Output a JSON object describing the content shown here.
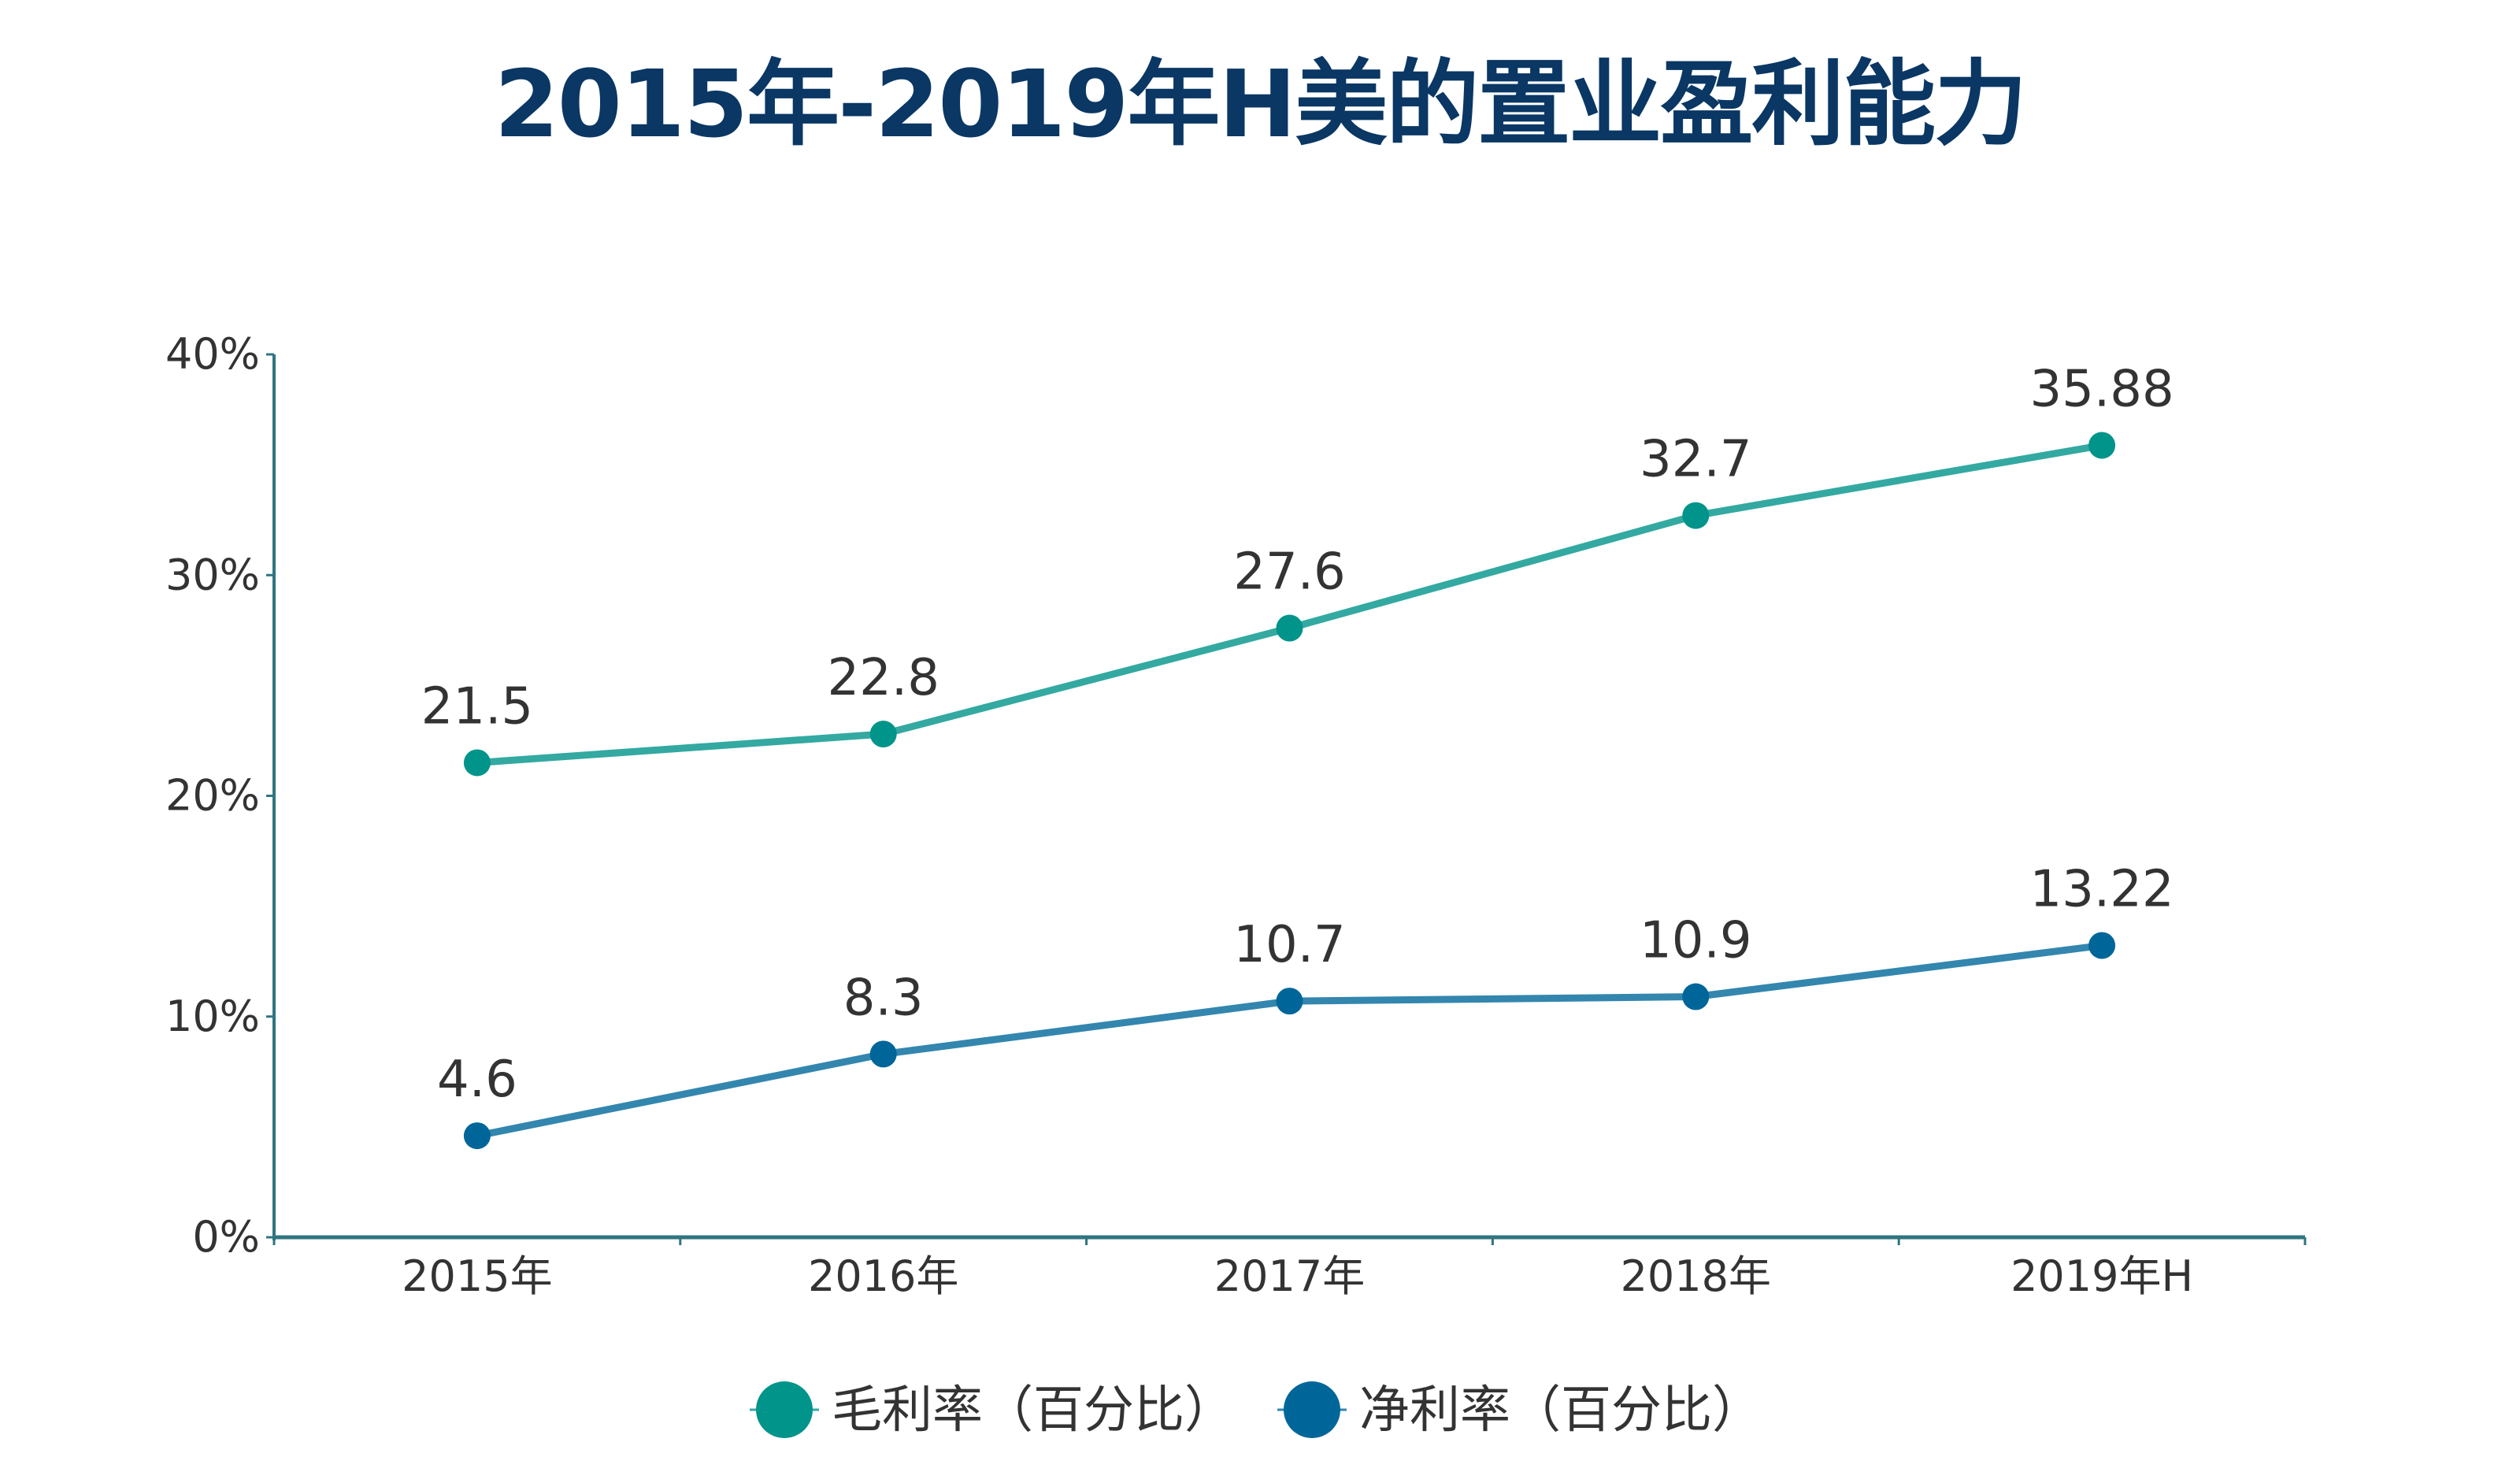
{
  "chart_data": {
    "type": "line",
    "title": "2015年-2019年H美的置业盈利能力",
    "xlabel": "",
    "ylabel": "",
    "categories": [
      "2015年",
      "2016年",
      "2017年",
      "2018年",
      "2019年H"
    ],
    "ylim": [
      0,
      40
    ],
    "yticks": [
      0,
      10,
      20,
      30,
      40
    ],
    "ytick_labels": [
      "0%",
      "10%",
      "20%",
      "30%",
      "40%"
    ],
    "grid": false,
    "legend_position": "bottom-center",
    "series": [
      {
        "name": "毛利率（百分比）",
        "values": [
          21.5,
          22.8,
          27.6,
          32.7,
          35.88
        ],
        "data_labels": [
          "21.5",
          "22.8",
          "27.6",
          "32.7",
          "35.88"
        ],
        "line_color": "#33a9a1",
        "marker_color": "#00948a"
      },
      {
        "name": "净利率（百分比）",
        "values": [
          4.6,
          8.3,
          10.7,
          10.9,
          13.22
        ],
        "data_labels": [
          "4.6",
          "8.3",
          "10.7",
          "10.9",
          "13.22"
        ],
        "line_color": "#3386ae",
        "marker_color": "#006699"
      }
    ],
    "colors": {
      "title": "#0a3764",
      "axis": "#2f7580",
      "text": "#333333"
    }
  }
}
